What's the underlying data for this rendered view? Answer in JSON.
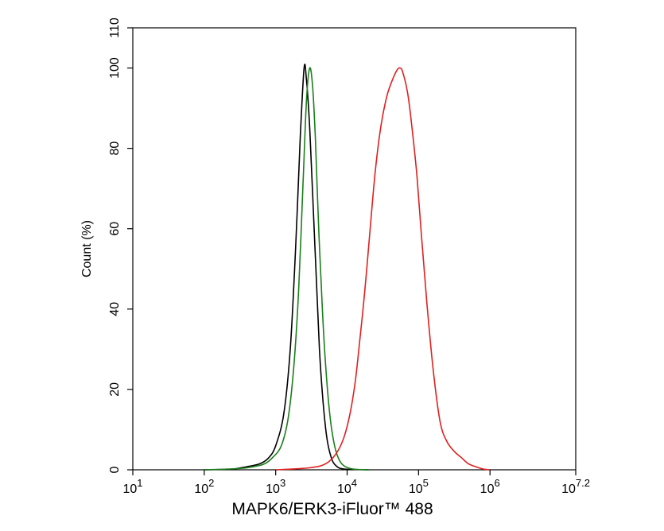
{
  "chart_data": {
    "type": "line",
    "xlabel": "MAPK6/ERK3-iFluor™ 488",
    "ylabel": "Count  (%)",
    "x_scale": "log",
    "xlim": [
      10,
      15848931.92
    ],
    "ylim": [
      0,
      110
    ],
    "x_tick_labels": [
      {
        "base": "10",
        "exp": "1",
        "value": 10
      },
      {
        "base": "10",
        "exp": "2",
        "value": 100
      },
      {
        "base": "10",
        "exp": "3",
        "value": 1000
      },
      {
        "base": "10",
        "exp": "4",
        "value": 10000
      },
      {
        "base": "10",
        "exp": "5",
        "value": 100000
      },
      {
        "base": "10",
        "exp": "6",
        "value": 1000000
      },
      {
        "base": "10",
        "exp": "7.2",
        "value": 15848931.92
      }
    ],
    "y_ticks": [
      0,
      20,
      40,
      60,
      80,
      100,
      110
    ],
    "grid": false,
    "legend": "none",
    "series": [
      {
        "color": "#000000",
        "x": [
          100,
          250,
          400,
          600,
          800,
          1000,
          1300,
          1600,
          1900,
          2200,
          2500,
          2700,
          3000,
          3300,
          3700,
          4100,
          4600,
          5200,
          6000,
          7000,
          9000,
          20000
        ],
        "y": [
          0,
          0.2,
          0.8,
          1.5,
          3,
          6,
          14,
          30,
          55,
          82,
          100,
          97,
          85,
          68,
          48,
          30,
          17,
          8,
          3,
          1,
          0.2,
          0
        ]
      },
      {
        "color": "#1a7f1a",
        "x": [
          100,
          300,
          500,
          700,
          900,
          1200,
          1500,
          1800,
          2100,
          2400,
          2700,
          3000,
          3300,
          3600,
          4000,
          4500,
          5000,
          5700,
          6500,
          7500,
          9000,
          12000,
          20000
        ],
        "y": [
          0,
          0.3,
          0.8,
          1.5,
          3,
          6,
          13,
          26,
          45,
          70,
          92,
          100,
          95,
          82,
          60,
          40,
          26,
          14,
          7,
          3,
          1,
          0.2,
          0
        ]
      },
      {
        "color": "#e02020",
        "x": [
          1000,
          3000,
          5000,
          7000,
          9000,
          11000,
          13000,
          15000,
          18000,
          21000,
          25000,
          30000,
          36000,
          43000,
          50000,
          55000,
          60000,
          70000,
          80000,
          95000,
          110000,
          130000,
          160000,
          200000,
          250000,
          320000,
          400000,
          500000,
          650000,
          800000,
          1000000
        ],
        "y": [
          0,
          0.5,
          1.5,
          4,
          8,
          14,
          22,
          32,
          46,
          60,
          75,
          86,
          93,
          97,
          99.5,
          100,
          99,
          94,
          86,
          73,
          58,
          42,
          25,
          12,
          7,
          4.5,
          3,
          1.5,
          0.7,
          0.2,
          0
        ]
      }
    ]
  }
}
